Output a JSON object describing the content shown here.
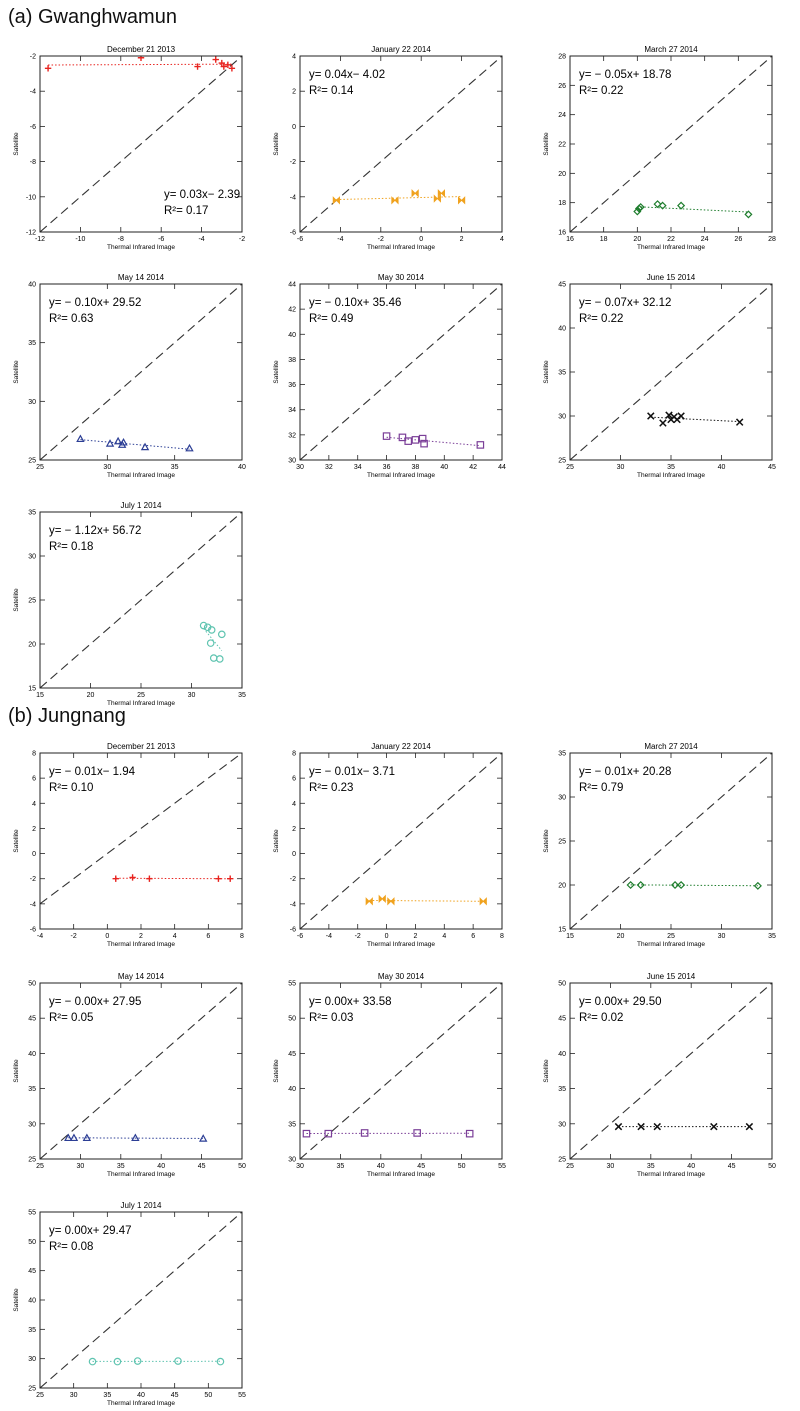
{
  "sections": [
    {
      "title": "(a) Gwanghwamun"
    },
    {
      "title": "(b) Jungnang"
    }
  ],
  "chart_data": [
    {
      "type": "scatter",
      "section": "(a) Gwanghwamun",
      "title": "December 21 2013",
      "xlabel": "Thermal Infrared Image",
      "ylabel": "Satellite",
      "xlim": [
        -12,
        -2
      ],
      "ylim": [
        -12,
        -2
      ],
      "xticks": [
        "-12",
        "-10",
        "-8",
        "-6",
        "-4",
        "-2"
      ],
      "yticks": [
        "-12",
        "-10",
        "-8",
        "-6",
        "-4",
        "-2"
      ],
      "equation": "y= 0.03x− 2.39",
      "r2": "R²= 0.17",
      "eq_pos": "bottom-right",
      "marker": "plus",
      "color": "#e8231f",
      "points": [
        [
          -11.6,
          -2.7
        ],
        [
          -7.0,
          -2.1
        ],
        [
          -4.2,
          -2.6
        ],
        [
          -3.3,
          -2.2
        ],
        [
          -3.0,
          -2.4
        ],
        [
          -2.9,
          -2.6
        ],
        [
          -2.7,
          -2.5
        ],
        [
          -2.5,
          -2.7
        ]
      ]
    },
    {
      "type": "scatter",
      "section": "(a) Gwanghwamun",
      "title": "January 22 2014",
      "xlabel": "Thermal Infrared Image",
      "ylabel": "Satellite",
      "xlim": [
        -6,
        4
      ],
      "ylim": [
        -6,
        4
      ],
      "xticks": [
        "-6",
        "-4",
        "-2",
        "0",
        "2",
        "4"
      ],
      "yticks": [
        "-6",
        "-4",
        "-2",
        "0",
        "2",
        "4"
      ],
      "equation": "y= 0.04x− 4.02",
      "r2": "R²= 0.14",
      "eq_pos": "top-left",
      "marker": "bowtie",
      "color": "#f0a21e",
      "points": [
        [
          -4.2,
          -4.2
        ],
        [
          -1.3,
          -4.2
        ],
        [
          -0.3,
          -3.8
        ],
        [
          0.8,
          -4.1
        ],
        [
          1.0,
          -3.8
        ],
        [
          2.0,
          -4.2
        ]
      ]
    },
    {
      "type": "scatter",
      "section": "(a) Gwanghwamun",
      "title": "March 27 2014",
      "xlabel": "Thermal Infrared Image",
      "ylabel": "Satellite",
      "xlim": [
        16,
        28
      ],
      "ylim": [
        16,
        28
      ],
      "xticks": [
        "16",
        "18",
        "20",
        "22",
        "24",
        "26",
        "28"
      ],
      "yticks": [
        "16",
        "18",
        "20",
        "22",
        "24",
        "26",
        "28"
      ],
      "equation": "y= − 0.05x+ 18.78",
      "r2": "R²= 0.22",
      "eq_pos": "top-left",
      "marker": "diamond",
      "color": "#1e7d2d",
      "points": [
        [
          20.0,
          17.4
        ],
        [
          20.1,
          17.6
        ],
        [
          20.2,
          17.7
        ],
        [
          21.2,
          17.9
        ],
        [
          21.5,
          17.8
        ],
        [
          22.6,
          17.8
        ],
        [
          26.6,
          17.2
        ]
      ]
    },
    {
      "type": "scatter",
      "section": "(a) Gwanghwamun",
      "title": "May 14 2014",
      "xlabel": "Thermal Infrared Image",
      "ylabel": "Satellite",
      "xlim": [
        25,
        40
      ],
      "ylim": [
        25,
        40
      ],
      "xticks": [
        "25",
        "30",
        "35",
        "40"
      ],
      "yticks": [
        "25",
        "30",
        "35",
        "40"
      ],
      "equation": "y= − 0.10x+ 29.52",
      "r2": "R²= 0.63",
      "eq_pos": "top-left",
      "marker": "triangle",
      "color": "#2c3e95",
      "points": [
        [
          28.0,
          26.8
        ],
        [
          30.2,
          26.4
        ],
        [
          30.8,
          26.6
        ],
        [
          31.1,
          26.3
        ],
        [
          31.2,
          26.5
        ],
        [
          32.8,
          26.1
        ],
        [
          36.1,
          26.0
        ]
      ]
    },
    {
      "type": "scatter",
      "section": "(a) Gwanghwamun",
      "title": "May 30 2014",
      "xlabel": "Thermal Infrared Image",
      "ylabel": "Satellite",
      "xlim": [
        30,
        44
      ],
      "ylim": [
        30,
        44
      ],
      "xticks": [
        "30",
        "32",
        "34",
        "36",
        "38",
        "40",
        "42",
        "44"
      ],
      "yticks": [
        "30",
        "32",
        "34",
        "36",
        "38",
        "40",
        "42",
        "44"
      ],
      "equation": "y= − 0.10x+ 35.46",
      "r2": "R²= 0.49",
      "eq_pos": "top-left",
      "marker": "square",
      "color": "#7b3f98",
      "points": [
        [
          36.0,
          31.9
        ],
        [
          37.1,
          31.8
        ],
        [
          37.5,
          31.5
        ],
        [
          38.0,
          31.6
        ],
        [
          38.5,
          31.7
        ],
        [
          38.6,
          31.3
        ],
        [
          42.5,
          31.2
        ]
      ]
    },
    {
      "type": "scatter",
      "section": "(a) Gwanghwamun",
      "title": "June 15 2014",
      "xlabel": "Thermal Infrared Image",
      "ylabel": "Satellite",
      "xlim": [
        25,
        45
      ],
      "ylim": [
        25,
        45
      ],
      "xticks": [
        "25",
        "30",
        "35",
        "40",
        "45"
      ],
      "yticks": [
        "25",
        "30",
        "35",
        "40",
        "45"
      ],
      "equation": "y= − 0.07x+ 32.12",
      "r2": "R²= 0.22",
      "eq_pos": "top-left",
      "marker": "x",
      "color": "#111111",
      "points": [
        [
          33.0,
          30.0
        ],
        [
          34.2,
          29.2
        ],
        [
          34.8,
          30.1
        ],
        [
          35.0,
          29.6
        ],
        [
          35.3,
          29.9
        ],
        [
          35.6,
          29.6
        ],
        [
          36.0,
          30.0
        ],
        [
          41.8,
          29.3
        ]
      ]
    },
    {
      "type": "scatter",
      "section": "(a) Gwanghwamun",
      "title": "July 1 2014",
      "xlabel": "Thermal Infrared Image",
      "ylabel": "Satellite",
      "xlim": [
        15,
        35
      ],
      "ylim": [
        15,
        35
      ],
      "xticks": [
        "15",
        "20",
        "25",
        "30",
        "35"
      ],
      "yticks": [
        "15",
        "20",
        "25",
        "30",
        "35"
      ],
      "equation": "y= − 1.12x+ 56.72",
      "r2": "R²= 0.18",
      "eq_pos": "top-left",
      "marker": "circle",
      "color": "#5fc4b0",
      "points": [
        [
          31.2,
          22.1
        ],
        [
          31.6,
          21.9
        ],
        [
          32.0,
          21.6
        ],
        [
          33.0,
          21.1
        ],
        [
          31.9,
          20.1
        ],
        [
          32.2,
          18.4
        ],
        [
          32.8,
          18.3
        ]
      ]
    },
    {
      "type": "scatter",
      "section": "(b) Jungnang",
      "title": "December 21 2013",
      "xlabel": "Thermal Infrared Image",
      "ylabel": "Satellite",
      "xlim": [
        -4,
        8
      ],
      "ylim": [
        -6,
        8
      ],
      "xticks": [
        "-4",
        "-2",
        "0",
        "2",
        "4",
        "6",
        "8"
      ],
      "yticks": [
        "-6",
        "-4",
        "-2",
        "0",
        "2",
        "4",
        "6",
        "8"
      ],
      "equation": "y= − 0.01x− 1.94",
      "r2": "R²= 0.10",
      "eq_pos": "top-left",
      "marker": "plus",
      "color": "#e8231f",
      "points": [
        [
          0.5,
          -2.0
        ],
        [
          1.5,
          -1.9
        ],
        [
          2.5,
          -2.0
        ],
        [
          6.6,
          -2.0
        ],
        [
          7.3,
          -2.0
        ]
      ]
    },
    {
      "type": "scatter",
      "section": "(b) Jungnang",
      "title": "January 22 2014",
      "xlabel": "Thermal Infrared Image",
      "ylabel": "Satellite",
      "xlim": [
        -6,
        8
      ],
      "ylim": [
        -6,
        8
      ],
      "xticks": [
        "-6",
        "-4",
        "-2",
        "0",
        "2",
        "4",
        "6",
        "8"
      ],
      "yticks": [
        "-6",
        "-4",
        "-2",
        "0",
        "2",
        "4",
        "6",
        "8"
      ],
      "equation": "y= − 0.01x− 3.71",
      "r2": "R²= 0.23",
      "eq_pos": "top-left",
      "marker": "bowtie",
      "color": "#f0a21e",
      "points": [
        [
          -1.2,
          -3.8
        ],
        [
          -0.3,
          -3.6
        ],
        [
          0.3,
          -3.8
        ],
        [
          6.7,
          -3.8
        ]
      ]
    },
    {
      "type": "scatter",
      "section": "(b) Jungnang",
      "title": "March 27 2014",
      "xlabel": "Thermal Infrared Image",
      "ylabel": "Satellite",
      "xlim": [
        15,
        35
      ],
      "ylim": [
        15,
        35
      ],
      "xticks": [
        "15",
        "20",
        "25",
        "30",
        "35"
      ],
      "yticks": [
        "15",
        "20",
        "25",
        "30",
        "35"
      ],
      "equation": "y= − 0.01x+ 20.28",
      "r2": "R²= 0.79",
      "eq_pos": "top-left",
      "marker": "diamond",
      "color": "#1e7d2d",
      "points": [
        [
          21.0,
          20.0
        ],
        [
          22.0,
          20.0
        ],
        [
          25.4,
          20.0
        ],
        [
          26.0,
          20.0
        ],
        [
          33.6,
          19.9
        ]
      ]
    },
    {
      "type": "scatter",
      "section": "(b) Jungnang",
      "title": "May 14 2014",
      "xlabel": "Thermal Infrared Image",
      "ylabel": "Satellite",
      "xlim": [
        25,
        50
      ],
      "ylim": [
        25,
        50
      ],
      "xticks": [
        "25",
        "30",
        "35",
        "40",
        "45",
        "50"
      ],
      "yticks": [
        "25",
        "30",
        "35",
        "40",
        "45",
        "50"
      ],
      "equation": "y= − 0.00x+ 27.95",
      "r2": "R²= 0.05",
      "eq_pos": "top-left",
      "marker": "triangle",
      "color": "#2c3e95",
      "points": [
        [
          28.5,
          28.0
        ],
        [
          29.2,
          28.0
        ],
        [
          30.8,
          28.0
        ],
        [
          36.8,
          28.0
        ],
        [
          45.2,
          27.9
        ]
      ]
    },
    {
      "type": "scatter",
      "section": "(b) Jungnang",
      "title": "May 30 2014",
      "xlabel": "Thermal Infrared Image",
      "ylabel": "Satellite",
      "xlim": [
        30,
        55
      ],
      "ylim": [
        30,
        55
      ],
      "xticks": [
        "30",
        "35",
        "40",
        "45",
        "50",
        "55"
      ],
      "yticks": [
        "30",
        "35",
        "40",
        "45",
        "50",
        "55"
      ],
      "equation": "y= 0.00x+ 33.58",
      "r2": "R²= 0.03",
      "eq_pos": "top-left",
      "marker": "square",
      "color": "#7b3f98",
      "points": [
        [
          30.8,
          33.6
        ],
        [
          33.5,
          33.6
        ],
        [
          38.0,
          33.7
        ],
        [
          44.5,
          33.7
        ],
        [
          51.0,
          33.6
        ]
      ]
    },
    {
      "type": "scatter",
      "section": "(b) Jungnang",
      "title": "June 15 2014",
      "xlabel": "Thermal Infrared Image",
      "ylabel": "Satellite",
      "xlim": [
        25,
        50
      ],
      "ylim": [
        25,
        50
      ],
      "xticks": [
        "25",
        "30",
        "35",
        "40",
        "45",
        "50"
      ],
      "yticks": [
        "25",
        "30",
        "35",
        "40",
        "45",
        "50"
      ],
      "equation": "y= 0.00x+ 29.50",
      "r2": "R²= 0.02",
      "eq_pos": "top-left",
      "marker": "x",
      "color": "#111111",
      "points": [
        [
          31.0,
          29.6
        ],
        [
          33.8,
          29.6
        ],
        [
          35.8,
          29.6
        ],
        [
          42.8,
          29.6
        ],
        [
          47.2,
          29.6
        ]
      ]
    },
    {
      "type": "scatter",
      "section": "(b) Jungnang",
      "title": "July 1 2014",
      "xlabel": "Thermal Infrared Image",
      "ylabel": "Satellite",
      "xlim": [
        25,
        55
      ],
      "ylim": [
        25,
        55
      ],
      "xticks": [
        "25",
        "30",
        "35",
        "40",
        "45",
        "50",
        "55"
      ],
      "yticks": [
        "25",
        "30",
        "35",
        "40",
        "45",
        "50",
        "55"
      ],
      "equation": "y= 0.00x+ 29.47",
      "r2": "R²= 0.08",
      "eq_pos": "top-left",
      "marker": "circle",
      "color": "#5fc4b0",
      "points": [
        [
          32.8,
          29.5
        ],
        [
          36.5,
          29.5
        ],
        [
          39.5,
          29.6
        ],
        [
          45.5,
          29.6
        ],
        [
          51.8,
          29.5
        ]
      ]
    }
  ]
}
